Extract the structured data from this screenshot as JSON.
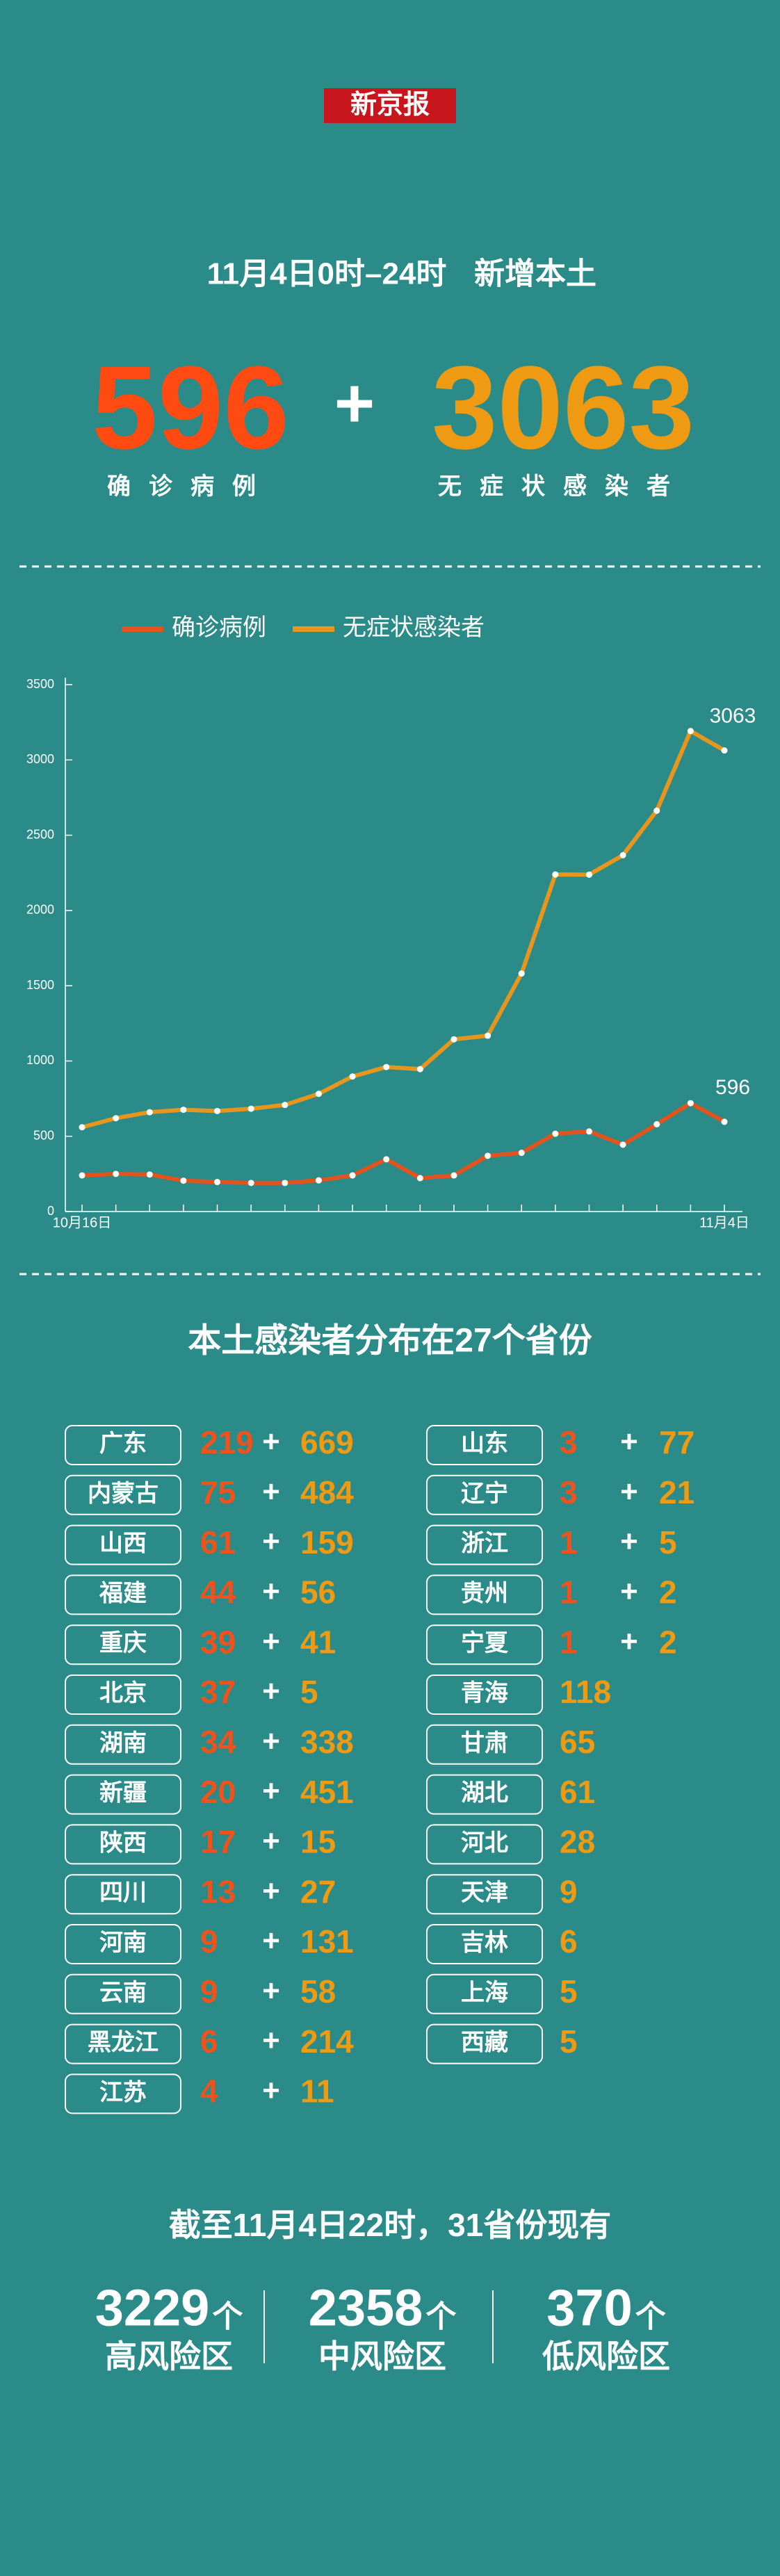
{
  "header": {
    "logo": "新京报",
    "date_range": "11月4日0时–24时",
    "subtitle": "新增本土"
  },
  "totals": {
    "confirmed": {
      "value": 596,
      "label": "确诊病例"
    },
    "plus": "+",
    "asymptomatic": {
      "value": 3063,
      "label": "无症状感染者"
    }
  },
  "chart_data": {
    "type": "line",
    "categories": [
      "10月16日",
      null,
      null,
      null,
      null,
      null,
      null,
      null,
      null,
      null,
      null,
      null,
      null,
      null,
      null,
      null,
      null,
      null,
      null,
      "11月4日"
    ],
    "series": [
      {
        "name": "确诊病例",
        "color": "#e2531d",
        "values": [
          240,
          250,
          246,
          205,
          196,
          190,
          190,
          207,
          240,
          347,
          222,
          240,
          370,
          390,
          517,
          532,
          444,
          580,
          720,
          596
        ]
      },
      {
        "name": "无症状感染者",
        "color": "#e8951c",
        "values": [
          560,
          620,
          660,
          676,
          668,
          683,
          708,
          782,
          897,
          960,
          946,
          1144,
          1168,
          1581,
          2239,
          2238,
          2367,
          2663,
          3192,
          3063
        ]
      }
    ],
    "ylim": [
      0,
      3500
    ],
    "yticks": [
      0,
      500,
      1000,
      1500,
      2000,
      2500,
      3000,
      3500
    ],
    "grid": false,
    "legend": "top"
  },
  "provinces": {
    "title": "本土感染者分布在27个省份",
    "plus": "+",
    "rows": [
      {
        "name": "广东",
        "confirmed": 219,
        "asymptomatic": 669
      },
      {
        "name": "内蒙古",
        "confirmed": 75,
        "asymptomatic": 484
      },
      {
        "name": "山西",
        "confirmed": 61,
        "asymptomatic": 159
      },
      {
        "name": "福建",
        "confirmed": 44,
        "asymptomatic": 56
      },
      {
        "name": "重庆",
        "confirmed": 39,
        "asymptomatic": 41
      },
      {
        "name": "北京",
        "confirmed": 37,
        "asymptomatic": 5
      },
      {
        "name": "湖南",
        "confirmed": 34,
        "asymptomatic": 338
      },
      {
        "name": "新疆",
        "confirmed": 20,
        "asymptomatic": 451
      },
      {
        "name": "陕西",
        "confirmed": 17,
        "asymptomatic": 15
      },
      {
        "name": "四川",
        "confirmed": 13,
        "asymptomatic": 27
      },
      {
        "name": "河南",
        "confirmed": 9,
        "asymptomatic": 131
      },
      {
        "name": "云南",
        "confirmed": 9,
        "asymptomatic": 58
      },
      {
        "name": "黑龙江",
        "confirmed": 6,
        "asymptomatic": 214
      },
      {
        "name": "江苏",
        "confirmed": 4,
        "asymptomatic": 11
      },
      {
        "name": "山东",
        "confirmed": 3,
        "asymptomatic": 77
      },
      {
        "name": "辽宁",
        "confirmed": 3,
        "asymptomatic": 21
      },
      {
        "name": "浙江",
        "confirmed": 1,
        "asymptomatic": 5
      },
      {
        "name": "贵州",
        "confirmed": 1,
        "asymptomatic": 2
      },
      {
        "name": "宁夏",
        "confirmed": 1,
        "asymptomatic": 2
      },
      {
        "name": "青海",
        "asymptomatic": 118
      },
      {
        "name": "甘肃",
        "asymptomatic": 65
      },
      {
        "name": "湖北",
        "asymptomatic": 61
      },
      {
        "name": "河北",
        "asymptomatic": 28
      },
      {
        "name": "天津",
        "asymptomatic": 9
      },
      {
        "name": "吉林",
        "asymptomatic": 6
      },
      {
        "name": "上海",
        "asymptomatic": 5
      },
      {
        "name": "西藏",
        "asymptomatic": 5
      }
    ]
  },
  "risk_areas": {
    "title": "截至11月4日22时，31省份现有",
    "unit": "个",
    "items": [
      {
        "value": 3229,
        "label": "高风险区"
      },
      {
        "value": 2358,
        "label": "中风险区"
      },
      {
        "value": 370,
        "label": "低风险区"
      }
    ]
  }
}
